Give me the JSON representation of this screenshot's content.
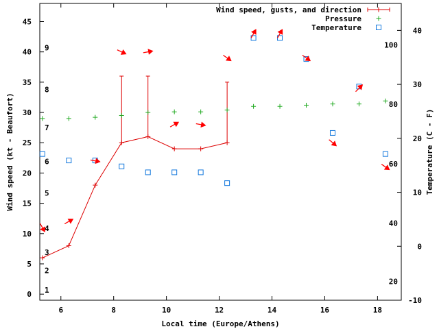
{
  "chart_data": {
    "type": "line",
    "x_axis": {
      "label": "Local time (Europe/Athens)",
      "range": [
        5.2,
        18.9
      ],
      "ticks": [
        6,
        8,
        10,
        12,
        14,
        16,
        18
      ]
    },
    "y_left": {
      "label": "Wind speed (kt - Beaufort)",
      "range": [
        -1,
        48
      ],
      "ticks": [
        0,
        5,
        10,
        15,
        20,
        25,
        30,
        35,
        40,
        45
      ]
    },
    "y_right": {
      "label": "Temperature (C - F)",
      "range": [
        -10,
        45
      ],
      "ticks": [
        -10,
        0,
        10,
        20,
        30,
        40
      ]
    },
    "beaufort_labels": [
      {
        "text": "1",
        "y": 0.7
      },
      {
        "text": "2",
        "y": 3.9
      },
      {
        "text": "3",
        "y": 6.9
      },
      {
        "text": "4",
        "y": 10.9
      },
      {
        "text": "5",
        "y": 16.7
      },
      {
        "text": "6",
        "y": 21.9
      },
      {
        "text": "7",
        "y": 27.5
      },
      {
        "text": "8",
        "y": 33.8
      },
      {
        "text": "9",
        "y": 40.7
      }
    ],
    "fahrenheit_labels": [
      {
        "text": "20",
        "t": -6.5
      },
      {
        "text": "40",
        "t": 4.3
      },
      {
        "text": "60",
        "t": 15.3
      },
      {
        "text": "80",
        "t": 26.3
      },
      {
        "text": "100",
        "t": 37.3
      }
    ],
    "legend": [
      {
        "label": "Wind speed, gusts, and direction",
        "color": "#dd0000",
        "marker": "line-plus"
      },
      {
        "label": "Pressure",
        "color": "#22aa22",
        "marker": "plus"
      },
      {
        "label": "Temperature",
        "color": "#1177dd",
        "marker": "square"
      }
    ],
    "series": [
      {
        "name": "Wind speed, gusts, and direction",
        "color": "#dd0000",
        "x": [
          5.3,
          6.3,
          7.3,
          8.3,
          9.3,
          10.3,
          11.3,
          12.3
        ],
        "y": [
          6,
          8,
          18,
          25,
          26,
          24,
          24,
          25
        ],
        "gusts": [
          {
            "x": 8.3,
            "low": 25,
            "high": 36
          },
          {
            "x": 9.3,
            "low": 26,
            "high": 36
          },
          {
            "x": 12.3,
            "low": 25,
            "high": 35
          }
        ]
      },
      {
        "name": "Pressure",
        "color": "#22aa22",
        "x": [
          5.3,
          6.3,
          7.3,
          8.3,
          9.3,
          10.3,
          11.3,
          12.3,
          13.3,
          14.3,
          15.3,
          16.3,
          17.3,
          18.3
        ],
        "y": [
          29.0,
          29.0,
          29.2,
          29.5,
          30.0,
          30.1,
          30.1,
          30.4,
          31.0,
          31.0,
          31.2,
          31.4,
          31.4,
          31.9
        ]
      },
      {
        "name": "Temperature",
        "color": "#1177dd",
        "x": [
          5.3,
          6.3,
          7.3,
          8.3,
          9.3,
          10.3,
          11.3,
          12.3,
          13.3,
          14.3,
          15.3,
          16.3,
          17.3,
          18.3
        ],
        "y": [
          17.1,
          15.9,
          15.9,
          14.8,
          13.7,
          13.7,
          13.7,
          11.7,
          38.6,
          38.6,
          34.7,
          21.0,
          29.6,
          17.1
        ]
      }
    ],
    "direction_arrows": [
      {
        "x": 5.3,
        "y": 11.0,
        "angle": 60
      },
      {
        "x": 6.3,
        "y": 12.0,
        "angle": -30
      },
      {
        "x": 7.3,
        "y": 22.0,
        "angle": 10
      },
      {
        "x": 8.3,
        "y": 40.0,
        "angle": 25
      },
      {
        "x": 9.3,
        "y": 40.0,
        "angle": -10
      },
      {
        "x": 10.3,
        "y": 28.0,
        "angle": -30
      },
      {
        "x": 11.3,
        "y": 28.0,
        "angle": 10
      },
      {
        "x": 12.3,
        "y": 39.0,
        "angle": 35
      },
      {
        "x": 13.3,
        "y": 43.0,
        "angle": -60
      },
      {
        "x": 14.3,
        "y": 43.0,
        "angle": -60
      },
      {
        "x": 15.3,
        "y": 39.0,
        "angle": 35
      },
      {
        "x": 16.3,
        "y": 25.0,
        "angle": 40
      },
      {
        "x": 17.3,
        "y": 34.0,
        "angle": -45
      },
      {
        "x": 18.3,
        "y": 21.0,
        "angle": 35
      }
    ],
    "arrow_color": "#ff0000",
    "grid": false
  }
}
